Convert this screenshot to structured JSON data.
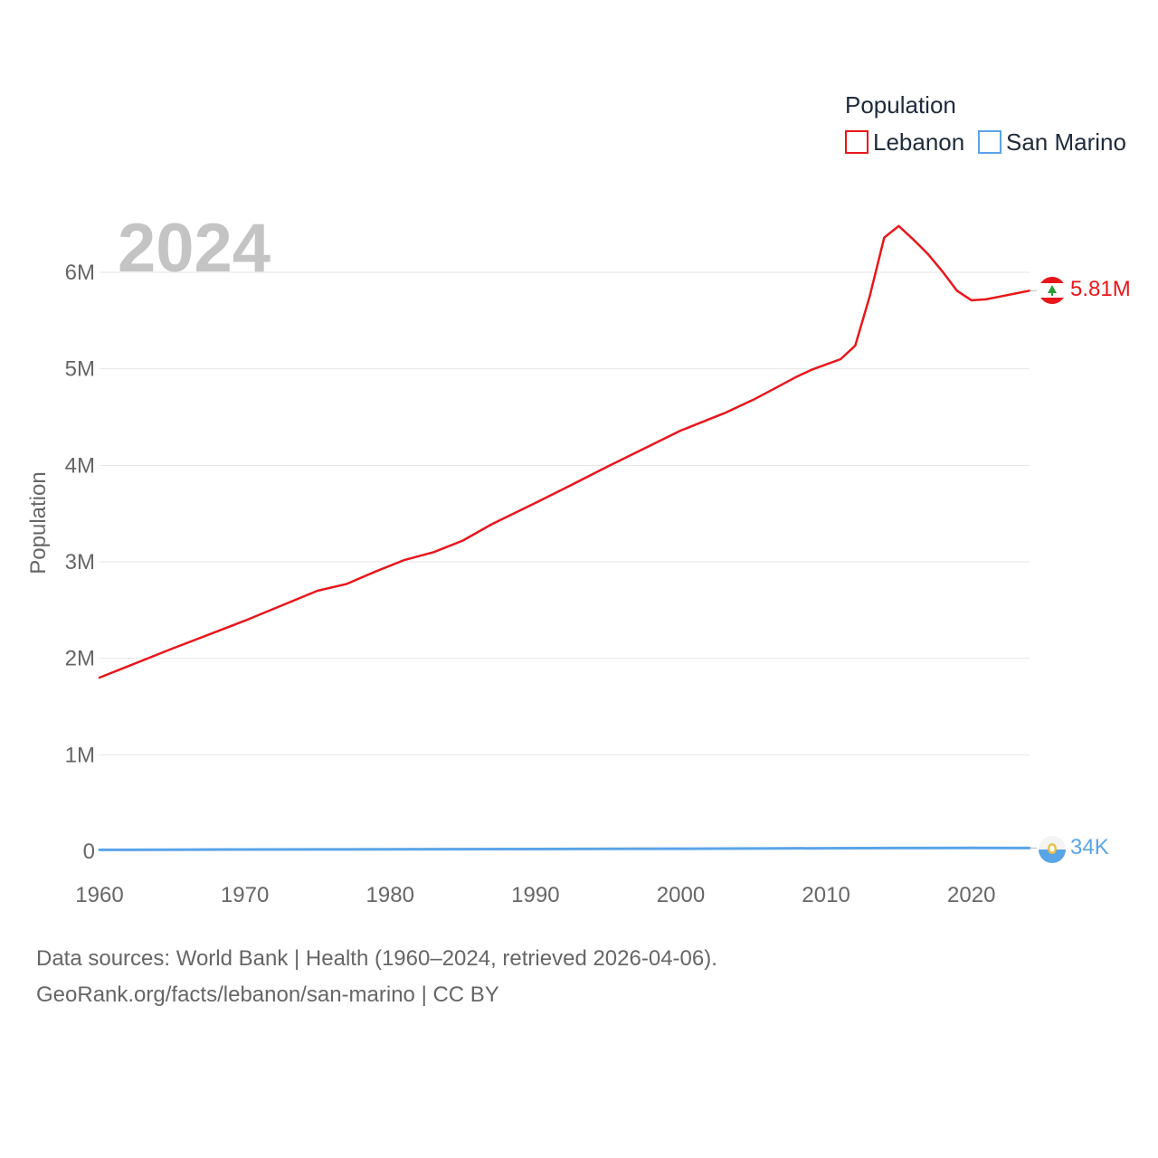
{
  "chart_data": {
    "type": "line",
    "title": "2024",
    "ylabel": "Population",
    "xlabel": "",
    "xlim": [
      1960,
      2024
    ],
    "ylim": [
      0,
      6000000
    ],
    "x_ticks": [
      1960,
      1970,
      1980,
      1990,
      2000,
      2010,
      2020
    ],
    "y_ticks": [
      {
        "value": 0,
        "label": "0"
      },
      {
        "value": 1000000,
        "label": "1M"
      },
      {
        "value": 2000000,
        "label": "2M"
      },
      {
        "value": 3000000,
        "label": "3M"
      },
      {
        "value": 4000000,
        "label": "4M"
      },
      {
        "value": 5000000,
        "label": "5M"
      },
      {
        "value": 6000000,
        "label": "6M"
      }
    ],
    "grid": true,
    "legend": {
      "title": "Population",
      "position": "top-right"
    },
    "series": [
      {
        "name": "Lebanon",
        "color": "#e8161b",
        "end_label": "5.81M",
        "icon": "lebanon-flag-icon",
        "points": [
          [
            1960,
            1800000
          ],
          [
            1965,
            2100000
          ],
          [
            1970,
            2390000
          ],
          [
            1975,
            2700000
          ],
          [
            1977,
            2770000
          ],
          [
            1979,
            2900000
          ],
          [
            1981,
            3020000
          ],
          [
            1983,
            3100000
          ],
          [
            1985,
            3220000
          ],
          [
            1987,
            3390000
          ],
          [
            1990,
            3610000
          ],
          [
            1992,
            3760000
          ],
          [
            1995,
            3990000
          ],
          [
            2000,
            4360000
          ],
          [
            2003,
            4540000
          ],
          [
            2005,
            4680000
          ],
          [
            2006,
            4760000
          ],
          [
            2008,
            4920000
          ],
          [
            2009,
            4990000
          ],
          [
            2011,
            5100000
          ],
          [
            2012,
            5240000
          ],
          [
            2013,
            5750000
          ],
          [
            2014,
            6360000
          ],
          [
            2015,
            6480000
          ],
          [
            2016,
            6340000
          ],
          [
            2017,
            6190000
          ],
          [
            2018,
            6010000
          ],
          [
            2019,
            5810000
          ],
          [
            2020,
            5710000
          ],
          [
            2021,
            5720000
          ],
          [
            2022,
            5750000
          ],
          [
            2023,
            5780000
          ],
          [
            2024,
            5810000
          ]
        ]
      },
      {
        "name": "San Marino",
        "color": "#5aa4e8",
        "end_label": "34K",
        "icon": "san-marino-flag-icon",
        "points": [
          [
            1960,
            15000
          ],
          [
            1965,
            16500
          ],
          [
            1970,
            18500
          ],
          [
            1975,
            19800
          ],
          [
            1980,
            21300
          ],
          [
            1985,
            22500
          ],
          [
            1990,
            23400
          ],
          [
            1995,
            25300
          ],
          [
            2000,
            27000
          ],
          [
            2005,
            29500
          ],
          [
            2010,
            31600
          ],
          [
            2015,
            33500
          ],
          [
            2020,
            34700
          ],
          [
            2024,
            34000
          ]
        ]
      }
    ]
  },
  "footer": {
    "line1": "Data sources: World Bank | Health (1960–2024, retrieved 2026-04-06).",
    "line2": "GeoRank.org/facts/lebanon/san-marino | CC BY"
  }
}
